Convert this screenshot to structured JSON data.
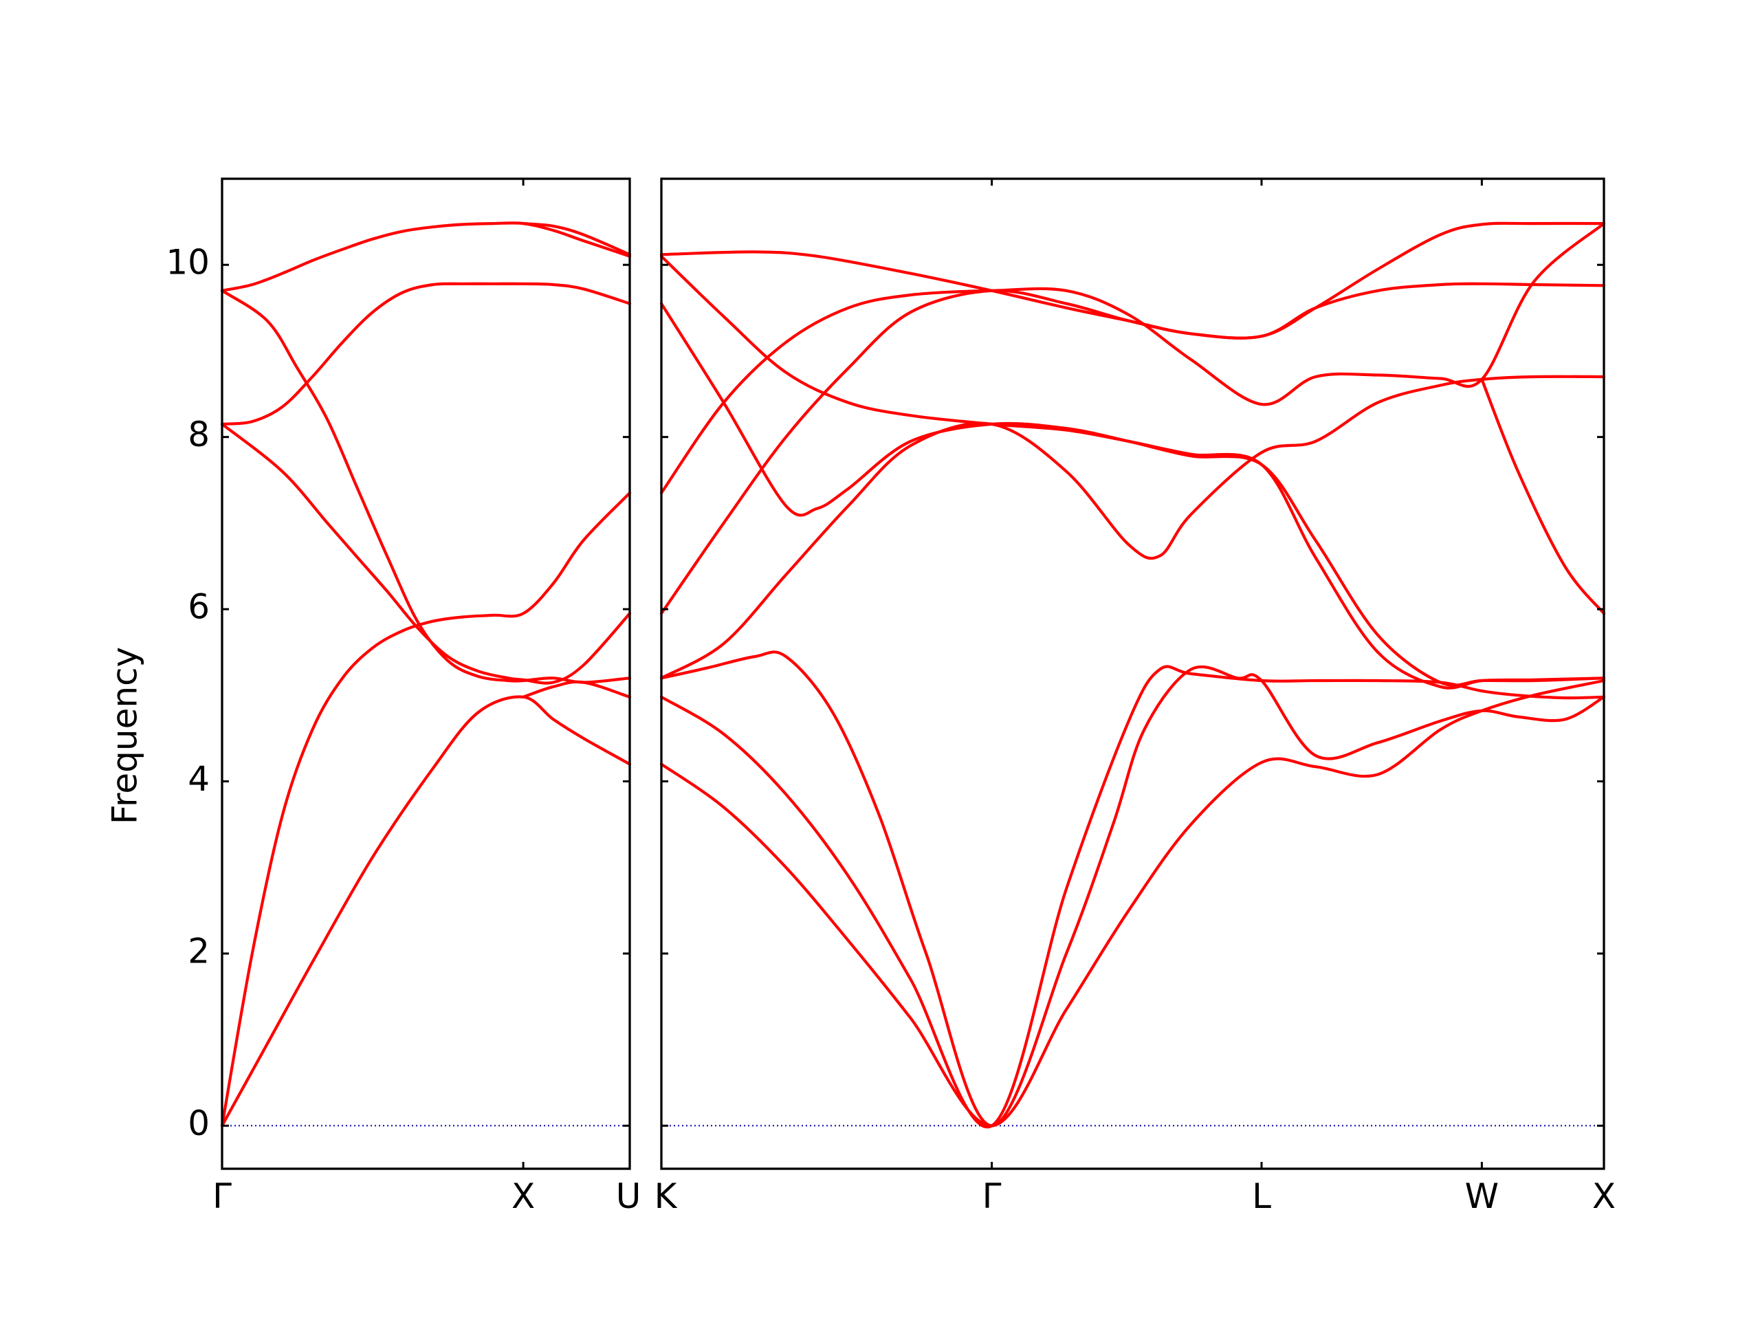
{
  "chart_data": {
    "type": "line",
    "ylabel": "Frequency",
    "ylim": [
      -0.5,
      11
    ],
    "yticks": [
      0,
      2,
      4,
      6,
      8,
      10
    ],
    "band_color": "#ff0000",
    "zero_line_color": "#0000aa",
    "panels": [
      {
        "name": "panel-1",
        "xrange": [
          0,
          1.3536
        ],
        "xticks": [
          {
            "x": 0,
            "label": "Γ"
          },
          {
            "x": 1.0,
            "label": "X"
          },
          {
            "x": 1.3536,
            "label": "U"
          }
        ],
        "bands": [
          {
            "x": [
              0,
              0.15,
              0.3,
              0.5,
              0.7,
              0.85,
              1.0,
              1.1,
              1.2,
              1.3536
            ],
            "y": [
              0,
              0.95,
              1.9,
              3.12,
              4.15,
              4.8,
              4.98,
              4.72,
              4.5,
              4.2
            ]
          },
          {
            "x": [
              0,
              0.1,
              0.2,
              0.3,
              0.4,
              0.5,
              0.6,
              0.7,
              0.8,
              0.9,
              1.0,
              1.1,
              1.2,
              1.3536
            ],
            "y": [
              0,
              2.0,
              3.6,
              4.6,
              5.2,
              5.55,
              5.75,
              5.86,
              5.91,
              5.93,
              5.95,
              6.3,
              6.8,
              7.35
            ]
          },
          {
            "x": [
              0,
              0.2,
              0.35,
              0.45,
              0.55,
              0.65,
              0.75,
              0.85,
              0.95,
              1.0,
              1.1,
              1.2,
              1.3536
            ],
            "y": [
              8.15,
              7.6,
              7.0,
              6.6,
              6.2,
              5.78,
              5.45,
              5.28,
              5.2,
              5.18,
              5.15,
              5.35,
              5.95
            ]
          },
          {
            "x": [
              0,
              0.15,
              0.25,
              0.35,
              0.45,
              0.55,
              0.65,
              0.75,
              0.85,
              0.95,
              1.0,
              1.1,
              1.2,
              1.3536
            ],
            "y": [
              9.7,
              9.35,
              8.8,
              8.2,
              7.4,
              6.6,
              5.85,
              5.4,
              5.22,
              5.17,
              5.17,
              5.2,
              5.15,
              5.2
            ]
          },
          {
            "x": [
              0,
              0.1,
              0.2,
              0.3,
              0.4,
              0.5,
              0.6,
              0.7,
              0.8,
              0.9,
              1.0,
              1.1,
              1.2,
              1.3536
            ],
            "y": [
              8.15,
              8.18,
              8.35,
              8.7,
              9.1,
              9.45,
              9.68,
              9.77,
              9.78,
              9.78,
              9.78,
              9.77,
              9.72,
              9.55
            ]
          },
          {
            "x": [
              0,
              0.1,
              0.2,
              0.3,
              0.4,
              0.5,
              0.6,
              0.7,
              0.8,
              0.9,
              1.0,
              1.1,
              1.2,
              1.3536
            ],
            "y": [
              9.7,
              9.77,
              9.9,
              10.05,
              10.18,
              10.3,
              10.39,
              10.44,
              10.47,
              10.48,
              10.48,
              10.4,
              10.28,
              10.1
            ]
          },
          {
            "x": [
              1.0,
              1.1,
              1.2,
              1.3536
            ],
            "y": [
              10.48,
              10.45,
              10.35,
              10.12
            ]
          },
          {
            "x": [
              1.0,
              1.1,
              1.2,
              1.3536
            ],
            "y": [
              4.98,
              5.1,
              5.15,
              4.98
            ]
          }
        ]
      },
      {
        "name": "panel-2",
        "xrange": [
          0,
          3.0258
        ],
        "xticks": [
          {
            "x": 0,
            "label": "K"
          },
          {
            "x": 1.0607,
            "label": "Γ"
          },
          {
            "x": 1.9267,
            "label": "L"
          },
          {
            "x": 2.6338,
            "label": "W"
          },
          {
            "x": 3.0258,
            "label": "X"
          }
        ],
        "bands": [
          {
            "x": [
              0,
              0.2,
              0.4,
              0.6,
              0.8,
              1.0607,
              1.3,
              1.5,
              1.7,
              1.9267,
              2.1,
              2.3,
              2.5,
              2.6338,
              2.8,
              3.0258
            ],
            "y": [
              4.2,
              3.7,
              3.0,
              2.15,
              1.25,
              0,
              1.35,
              2.5,
              3.5,
              4.22,
              4.17,
              4.08,
              4.6,
              4.82,
              5.0,
              5.17
            ]
          },
          {
            "x": [
              0,
              0.2,
              0.4,
              0.6,
              0.8,
              1.0607,
              1.3,
              1.5,
              1.6,
              1.7,
              1.9267,
              2.1,
              2.3,
              2.5,
              2.6338,
              2.75,
              2.9,
              3.0258
            ],
            "y": [
              4.98,
              4.55,
              3.85,
              2.9,
              1.7,
              0,
              2.75,
              4.7,
              5.3,
              5.25,
              5.17,
              5.17,
              5.17,
              5.15,
              5.05,
              5.0,
              4.97,
              4.98
            ]
          },
          {
            "x": [
              0,
              0.15,
              0.3,
              0.4,
              0.55,
              0.7,
              0.85,
              1.0607,
              1.3,
              1.45,
              1.55,
              1.7,
              1.85,
              1.9267,
              2.1,
              2.3,
              2.5,
              2.6338,
              2.75,
              2.9,
              3.0258
            ],
            "y": [
              5.2,
              5.32,
              5.45,
              5.45,
              4.8,
              3.6,
              2.0,
              0,
              2.0,
              3.5,
              4.6,
              5.3,
              5.2,
              5.17,
              4.3,
              4.45,
              4.7,
              4.82,
              4.75,
              4.72,
              4.98
            ]
          },
          {
            "x": [
              0,
              0.2,
              0.4,
              0.6,
              0.8,
              1.0607,
              1.3,
              1.5,
              1.6,
              1.7,
              1.9267,
              2.1,
              2.3,
              2.5,
              2.6338,
              2.8,
              3.0258
            ],
            "y": [
              5.2,
              5.6,
              6.4,
              7.2,
              7.9,
              8.15,
              7.6,
              6.75,
              6.62,
              7.1,
              7.82,
              7.95,
              8.4,
              8.6,
              8.67,
              8.7,
              8.7
            ]
          },
          {
            "x": [
              0,
              0.2,
              0.4,
              0.6,
              0.8,
              1.0607,
              1.3,
              1.5,
              1.7,
              1.9267,
              2.1,
              2.3,
              2.5,
              2.6338,
              2.8,
              3.0258
            ],
            "y": [
              5.95,
              7.0,
              8.0,
              8.8,
              9.45,
              9.7,
              9.55,
              9.35,
              9.2,
              9.17,
              9.5,
              9.7,
              9.77,
              9.78,
              9.77,
              9.76
            ]
          },
          {
            "x": [
              0,
              0.2,
              0.4,
              0.6,
              0.8,
              1.0607,
              1.3,
              1.5,
              1.7,
              1.9267,
              2.1,
              2.3,
              2.5,
              2.6338,
              2.8,
              3.0258
            ],
            "y": [
              7.35,
              8.4,
              9.1,
              9.5,
              9.65,
              9.7,
              9.7,
              9.42,
              8.9,
              8.38,
              8.7,
              8.72,
              8.68,
              8.67,
              9.8,
              10.48
            ]
          },
          {
            "x": [
              0,
              0.2,
              0.4,
              0.5,
              0.6,
              0.8,
              1.0607,
              1.3,
              1.5,
              1.7,
              1.9267,
              2.1,
              2.3,
              2.5,
              2.6338,
              2.8,
              3.0258
            ],
            "y": [
              9.55,
              8.4,
              7.2,
              7.17,
              7.4,
              7.95,
              8.15,
              8.1,
              7.95,
              7.78,
              7.68,
              6.8,
              5.7,
              5.15,
              5.17,
              5.17,
              5.2
            ]
          },
          {
            "x": [
              0,
              0.2,
              0.4,
              0.6,
              0.8,
              1.0607,
              1.3,
              1.5,
              1.7,
              1.9267,
              2.1,
              2.3,
              2.5,
              2.6338,
              2.8,
              3.0258
            ],
            "y": [
              10.1,
              9.4,
              8.75,
              8.4,
              8.25,
              8.15,
              8.08,
              7.95,
              7.8,
              7.68,
              6.6,
              5.5,
              5.1,
              5.17,
              5.18,
              5.2
            ]
          },
          {
            "x": [
              0,
              0.3,
              0.5,
              0.8,
              1.0607,
              1.3,
              1.5,
              1.7,
              1.9267,
              2.1,
              2.3,
              2.5,
              2.6338,
              2.8,
              3.0258
            ],
            "y": [
              10.12,
              10.15,
              10.1,
              9.9,
              9.7,
              9.5,
              9.35,
              9.2,
              9.17,
              9.5,
              9.95,
              10.35,
              10.47,
              10.48,
              10.48
            ]
          },
          {
            "x": [
              2.6338,
              2.75,
              2.9,
              3.0258
            ],
            "y": [
              8.67,
              7.6,
              6.5,
              5.95
            ]
          }
        ]
      }
    ]
  }
}
